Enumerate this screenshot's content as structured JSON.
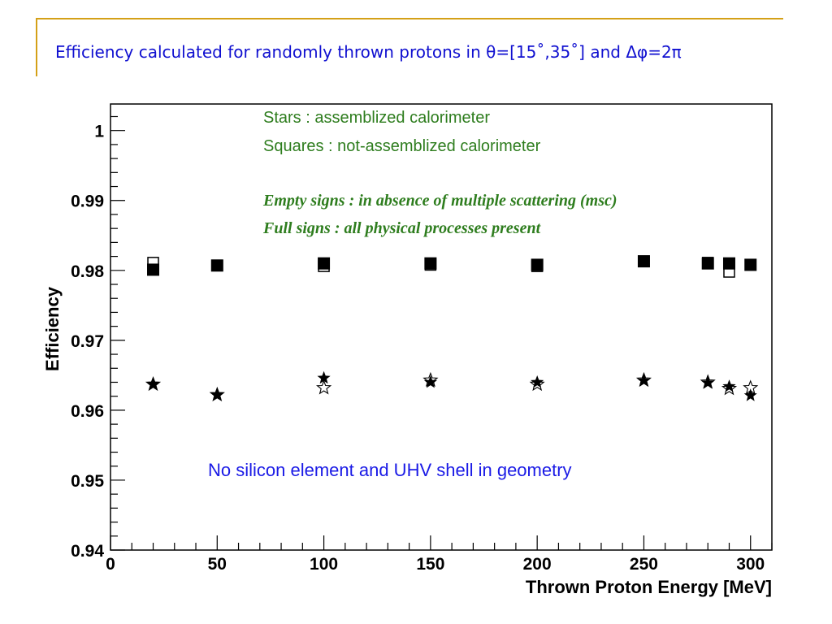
{
  "slide": {
    "title": "Efficiency calculated for randomly thrown protons in θ=[15˚,35˚] and Δφ=2π"
  },
  "chart_data": {
    "type": "scatter",
    "xlabel": "Thrown Proton Energy [MeV]",
    "ylabel": "Efficiency",
    "xlim": [
      0,
      310
    ],
    "ylim": [
      0.94,
      1.0038
    ],
    "x_ticks": [
      0,
      50,
      100,
      150,
      200,
      250,
      300
    ],
    "y_ticks": [
      0.94,
      0.95,
      0.96,
      0.97,
      0.98,
      0.99,
      1
    ],
    "grid": false,
    "annotations": {
      "line1": "Stars : assemblized calorimeter",
      "line2": "Squares : not-assemblized calorimeter",
      "line3": "Empty signs : in absence of multiple scattering (msc)",
      "line4": "Full signs : all physical processes present",
      "note": "No silicon element and UHV shell in geometry"
    },
    "series": [
      {
        "marker": "square-filled",
        "x": [
          20,
          50,
          100,
          150,
          200,
          250,
          280,
          290,
          300
        ],
        "y": [
          0.9801,
          0.9807,
          0.981,
          0.981,
          0.9808,
          0.9813,
          0.981,
          0.981,
          0.9808
        ]
      },
      {
        "marker": "square-open",
        "x": [
          20,
          50,
          100,
          150,
          200,
          250,
          280,
          290,
          300
        ],
        "y": [
          0.9811,
          0.9807,
          0.9806,
          0.9808,
          0.9806,
          0.9813,
          0.9811,
          0.9798,
          0.9808
        ]
      },
      {
        "marker": "star-filled",
        "x": [
          20,
          50,
          100,
          150,
          200,
          250,
          280,
          290,
          300
        ],
        "y": [
          0.9637,
          0.9622,
          0.9646,
          0.964,
          0.964,
          0.9642,
          0.9639,
          0.9634,
          0.9621
        ]
      },
      {
        "marker": "star-open",
        "x": [
          20,
          50,
          100,
          150,
          200,
          250,
          280,
          290,
          300
        ],
        "y": [
          0.9637,
          0.9622,
          0.9632,
          0.9643,
          0.9637,
          0.9643,
          0.964,
          0.9631,
          0.9632
        ]
      }
    ]
  }
}
